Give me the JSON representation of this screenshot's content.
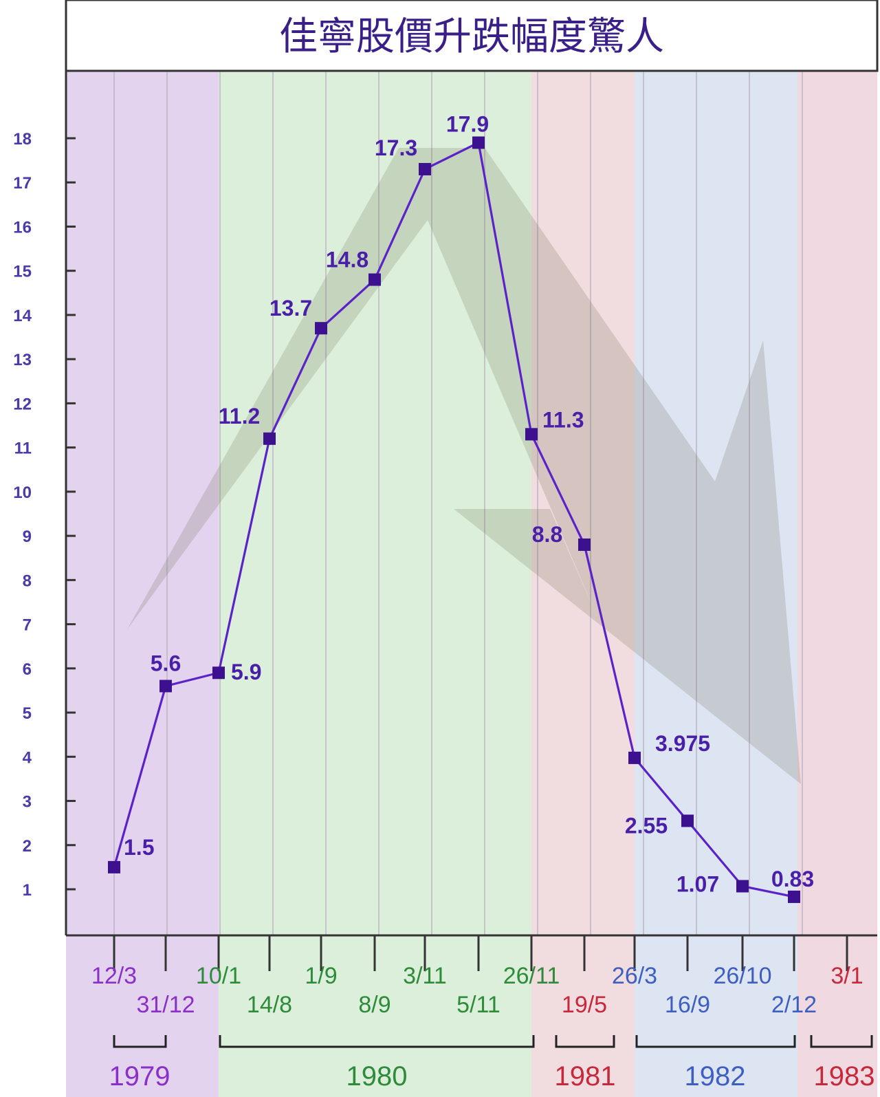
{
  "chart_data": {
    "type": "line",
    "title": "佳寧股價升跌幅度驚人",
    "xlabel": "",
    "ylabel": "",
    "ylim": [
      0,
      19
    ],
    "yticks": [
      1,
      2,
      3,
      4,
      5,
      6,
      7,
      8,
      9,
      10,
      11,
      12,
      13,
      14,
      15,
      16,
      17,
      18
    ],
    "categories": [
      "12/3",
      "31/12",
      "10/1",
      "14/8",
      "1/9",
      "8/9",
      "3/11",
      "5/11",
      "26/11",
      "19/5",
      "26/3",
      "16/9",
      "26/10",
      "2/12",
      "3/1"
    ],
    "category_years": [
      "1979",
      "1979",
      "1980",
      "1980",
      "1980",
      "1980",
      "1980",
      "1980",
      "1980",
      "1981",
      "1982",
      "1982",
      "1982",
      "1982",
      "1983"
    ],
    "series": [
      {
        "values": [
          1.5,
          5.6,
          5.9,
          11.2,
          13.7,
          14.8,
          17.3,
          17.9,
          11.3,
          8.8,
          3.975,
          2.55,
          1.07,
          0.83,
          null
        ],
        "labels": [
          "1.5",
          "5.6",
          "5.9",
          "11.2",
          "13.7",
          "14.8",
          "17.3",
          "17.9",
          "11.3",
          "8.8",
          "3.975",
          "2.55",
          "1.07",
          "0.83",
          ""
        ]
      }
    ],
    "years": [
      {
        "label": "1979",
        "color": "#8b2fc9"
      },
      {
        "label": "1980",
        "color": "#2e8b3a"
      },
      {
        "label": "1981",
        "color": "#c8283c"
      },
      {
        "label": "1982",
        "color": "#3f5fc0"
      },
      {
        "label": "1983",
        "color": "#c8283c"
      }
    ],
    "grid": true,
    "legend": "none",
    "colors": {
      "line": "#5b22c8",
      "marker": "#3d108f",
      "value_label": "#4a1fa8",
      "axis": "#333333",
      "band_1979": "#e3d3ee",
      "band_1980": "#dcefdb",
      "band_1981": "#f1dcdf",
      "band_1982": "#dde4f2",
      "band_1983": "#f0d9e0"
    }
  }
}
